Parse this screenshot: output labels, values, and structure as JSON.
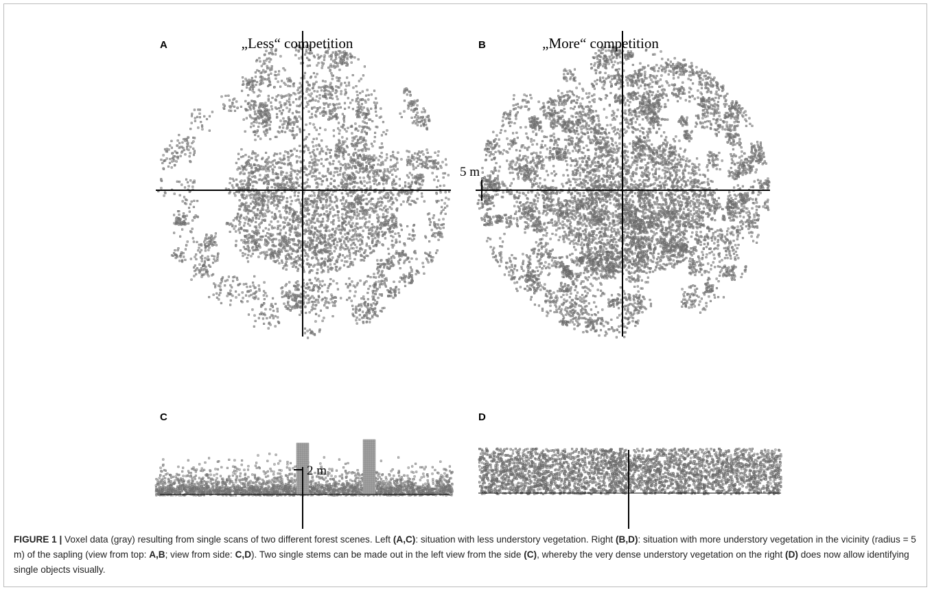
{
  "panels": [
    {
      "label": "A",
      "title": "„Less“ competition"
    },
    {
      "label": "B",
      "title": "„More“ competition"
    },
    {
      "label": "C"
    },
    {
      "label": "D"
    }
  ],
  "scale_labels": {
    "top": "5 m",
    "side": "2 m"
  },
  "caption": {
    "label": "FIGURE 1 |",
    "parts": [
      " Voxel data (gray) resulting from single scans of two different forest scenes. Left ",
      "(A,C)",
      ": situation with less understory vegetation. Right ",
      "(B,D)",
      ": situation with more understory vegetation in the vicinity (radius = 5 m) of the sapling (view from top: ",
      "A,B",
      "; view from side: ",
      "C,D",
      "). Two single stems can be made out in the left view from the side ",
      "(C)",
      ", whereby the very dense understory vegetation on the right ",
      "(D)",
      " does now allow identifying single objects visually."
    ]
  }
}
